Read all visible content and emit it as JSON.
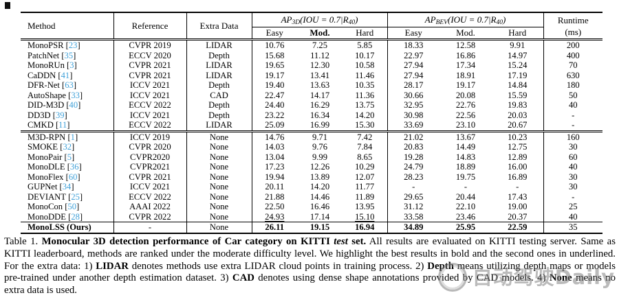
{
  "colors": {
    "citation_blue": "#3fa0d8",
    "watermark_gray": "#7d7d7d",
    "rule_black": "#000000"
  },
  "table": {
    "col_headers": {
      "method": "Method",
      "reference": "Reference",
      "extra_data": "Extra Data",
      "runtime_line1": "Runtime",
      "runtime_line2": "(ms)",
      "sub_headers": [
        "Easy",
        "Mod.",
        "Hard"
      ],
      "ap3d": {
        "base": "AP",
        "sub": "3D",
        "mid": "(IOU = 0.7|R",
        "sub2": "40",
        "end": ")"
      },
      "apbev": {
        "base": "AP",
        "sub": "BEV",
        "mid": "(IOU = 0.7|R",
        "sub2": "40",
        "end": ")"
      }
    },
    "groups": [
      [
        {
          "method": "MonoPSR",
          "cite": "23",
          "reference": "CVPR 2019",
          "extra": "LIDAR",
          "ap3d": [
            "10.76",
            "7.25",
            "5.85"
          ],
          "apbev": [
            "18.33",
            "12.58",
            "9.91"
          ],
          "runtime": "200"
        },
        {
          "method": "PatchNet",
          "cite": "35",
          "reference": "ECCV 2020",
          "extra": "Depth",
          "ap3d": [
            "15.68",
            "11.12",
            "10.17"
          ],
          "apbev": [
            "22.97",
            "16.86",
            "14.97"
          ],
          "runtime": "400"
        },
        {
          "method": "MonoRUn",
          "cite": "3",
          "reference": "CVPR 2021",
          "extra": "LIDAR",
          "ap3d": [
            "19.65",
            "12.30",
            "10.58"
          ],
          "apbev": [
            "27.94",
            "17.34",
            "15.24"
          ],
          "runtime": "70"
        },
        {
          "method": "CaDDN",
          "cite": "41",
          "reference": "CVPR 2021",
          "extra": "LIDAR",
          "ap3d": [
            "19.17",
            "13.41",
            "11.46"
          ],
          "apbev": [
            "27.94",
            "18.91",
            "17.19"
          ],
          "runtime": "630"
        },
        {
          "method": "DFR-Net",
          "cite": "63",
          "reference": "ICCV 2021",
          "extra": "Depth",
          "ap3d": [
            "19.40",
            "13.63",
            "10.35"
          ],
          "apbev": [
            "28.17",
            "19.17",
            "14.84"
          ],
          "runtime": "180"
        },
        {
          "method": "AutoShape",
          "cite": "33",
          "reference": "ICCV 2021",
          "extra": "CAD",
          "ap3d": [
            "22.47",
            "14.17",
            "11.36"
          ],
          "apbev": [
            "30.66",
            "20.08",
            "15.59"
          ],
          "runtime": "50"
        },
        {
          "method": "DID-M3D",
          "cite": "40",
          "reference": "ECCV 2022",
          "extra": "Depth",
          "ap3d": [
            "24.40",
            "16.29",
            "13.75"
          ],
          "apbev": [
            "32.95",
            "22.76",
            "19.83"
          ],
          "runtime": "40"
        },
        {
          "method": "DD3D",
          "cite": "39",
          "reference": "ICCV 2021",
          "extra": "Depth",
          "ap3d": [
            "23.22",
            "16.34",
            "14.20"
          ],
          "apbev": [
            "30.98",
            "22.56",
            "20.03"
          ],
          "runtime": "-"
        },
        {
          "method": "CMKD",
          "cite": "11",
          "reference": "ECCV 2022",
          "extra": "LIDAR",
          "ap3d": [
            "25.09",
            "16.99",
            "15.30"
          ],
          "apbev": [
            "33.69",
            "23.10",
            "20.67"
          ],
          "runtime": "-"
        }
      ],
      [
        {
          "method": "M3D-RPN",
          "cite": "1",
          "reference": "ICCV 2019",
          "extra": "None",
          "ap3d": [
            "14.76",
            "9.71",
            "7.42"
          ],
          "apbev": [
            "21.02",
            "13.67",
            "10.23"
          ],
          "runtime": "160"
        },
        {
          "method": "SMOKE",
          "cite": "32",
          "reference": "CVPR 2020",
          "extra": "None",
          "ap3d": [
            "14.03",
            "9.76",
            "7.84"
          ],
          "apbev": [
            "20.83",
            "14.49",
            "12.75"
          ],
          "runtime": "30"
        },
        {
          "method": "MonoPair",
          "cite": "5",
          "reference": "CVPR2020",
          "extra": "None",
          "ap3d": [
            "13.04",
            "9.99",
            "8.65"
          ],
          "apbev": [
            "19.28",
            "14.83",
            "12.89"
          ],
          "runtime": "60"
        },
        {
          "method": "MonoDLE",
          "cite": "36",
          "reference": "CVPR2021",
          "extra": "None",
          "ap3d": [
            "17.23",
            "12.26",
            "10.29"
          ],
          "apbev": [
            "24.79",
            "18.89",
            "16.00"
          ],
          "runtime": "40"
        },
        {
          "method": "MonoFlex",
          "cite": "60",
          "reference": "CVPR 2021",
          "extra": "None",
          "ap3d": [
            "19.94",
            "13.89",
            "12.07"
          ],
          "apbev": [
            "28.23",
            "19.75",
            "16.89"
          ],
          "runtime": "30"
        },
        {
          "method": "GUPNet",
          "cite": "34",
          "reference": "ICCV 2021",
          "extra": "None",
          "ap3d": [
            "20.11",
            "14.20",
            "11.77"
          ],
          "apbev": [
            "-",
            "-",
            "-"
          ],
          "runtime": "30"
        },
        {
          "method": "DEVIANT",
          "cite": "25",
          "reference": "ECCV 2022",
          "extra": "None",
          "ap3d": [
            "21.88",
            "14.46",
            "11.89"
          ],
          "apbev": [
            "29.65",
            "20.44",
            "17.43"
          ],
          "runtime": "-"
        },
        {
          "method": "MonoCon",
          "cite": "50",
          "reference": "AAAI 2022",
          "extra": "None",
          "ap3d": [
            "22.50",
            "16.46",
            "13.95"
          ],
          "apbev": [
            "31.12",
            "22.10",
            "19.00"
          ],
          "runtime": "25"
        },
        {
          "method": "MonoDDE",
          "cite": "28",
          "reference": "CVPR 2022",
          "extra": "None",
          "ap3d": [
            "24.93",
            "17.14",
            "15.10"
          ],
          "ul3d": [
            0,
            2
          ],
          "apbev": [
            "33.58",
            "23.46",
            "20.37"
          ],
          "runtime": "40"
        }
      ],
      [
        {
          "method": "MonoLSS (Ours)",
          "cite": null,
          "reference": "-",
          "extra": "None",
          "bold": true,
          "ap3d": [
            "26.11",
            "19.15",
            "16.94"
          ],
          "apbev": [
            "34.89",
            "25.95",
            "22.59"
          ],
          "runtime": "35"
        }
      ]
    ]
  },
  "caption": {
    "segments": [
      {
        "t": "Table 1.  ",
        "s": "n"
      },
      {
        "t": "Monocular 3D detection performance of Car category on KITTI ",
        "s": "b"
      },
      {
        "t": "test",
        "s": "bi"
      },
      {
        "t": " set.",
        "s": "b"
      },
      {
        "t": "  All results are evaluated on KITTI testing server. Same as KITTI leaderboard, methods are ranked under the moderate difficulty level.  We highlight the best results in bold and the second ones in underlined.  For the extra data: 1) ",
        "s": "n"
      },
      {
        "t": "LIDAR",
        "s": "b"
      },
      {
        "t": " denotes methods use extra LIDAR cloud points in training process. 2) ",
        "s": "n"
      },
      {
        "t": "Depth",
        "s": "b"
      },
      {
        "t": " means utilizing depth maps or models pre-trained under another depth estimation dataset. 3) ",
        "s": "n"
      },
      {
        "t": "CAD",
        "s": "b"
      },
      {
        "t": " denotes using dense shape annotations provided by CAD models. 4) ",
        "s": "n"
      },
      {
        "t": "None",
        "s": "b"
      },
      {
        "t": " means no extra data is used.",
        "s": "n"
      }
    ]
  },
  "watermark": {
    "text": "自动驾驶Daily"
  }
}
